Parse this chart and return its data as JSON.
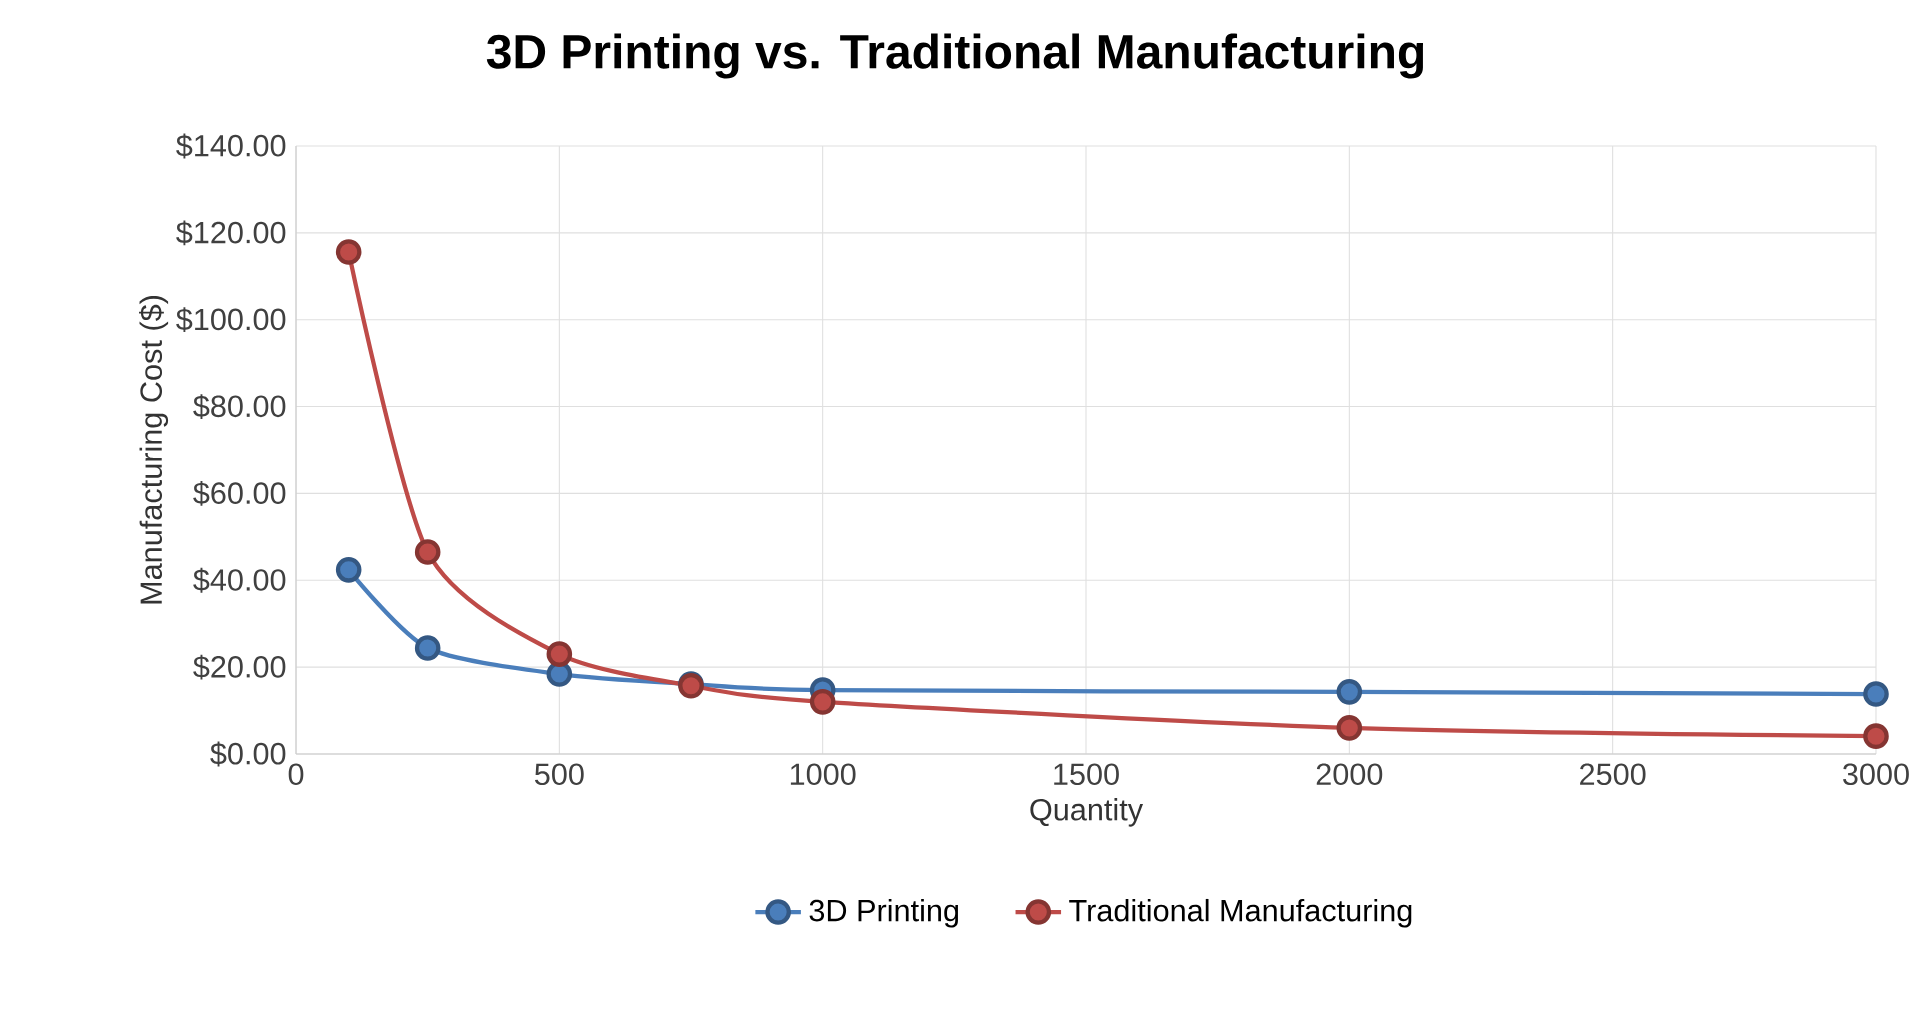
{
  "chart_data": {
    "type": "line",
    "title": "3D Printing vs. Traditional Manufacturing",
    "xlabel": "Quantity",
    "ylabel": "Manufacturing Cost ($)",
    "x": [
      100,
      250,
      500,
      750,
      1000,
      2000,
      3000
    ],
    "series": [
      {
        "name": "3D Printing",
        "color": "#4a7ebb",
        "values": [
          42.4,
          24.4,
          18.4,
          16.1,
          14.7,
          14.3,
          13.8
        ]
      },
      {
        "name": "Traditional Manufacturing",
        "color": "#be4b48",
        "values": [
          115.6,
          46.5,
          23,
          15.7,
          12,
          6,
          4.1
        ]
      }
    ],
    "xlim": [
      0,
      3000
    ],
    "xticks": [
      0,
      500,
      1000,
      1500,
      2000,
      2500,
      3000
    ],
    "ylim": [
      0,
      140
    ],
    "yticks": [
      {
        "value": 0,
        "label": "$0.00"
      },
      {
        "value": 20,
        "label": "$20.00"
      },
      {
        "value": 40,
        "label": "$40.00"
      },
      {
        "value": 60,
        "label": "$60.00"
      },
      {
        "value": 80,
        "label": "$80.00"
      },
      {
        "value": 100,
        "label": "$100.00"
      },
      {
        "value": 120,
        "label": "$120.00"
      },
      {
        "value": 140,
        "label": "$140.00"
      }
    ],
    "grid": true,
    "legend": "bottom",
    "marker": "circle",
    "line_style": "solid"
  }
}
